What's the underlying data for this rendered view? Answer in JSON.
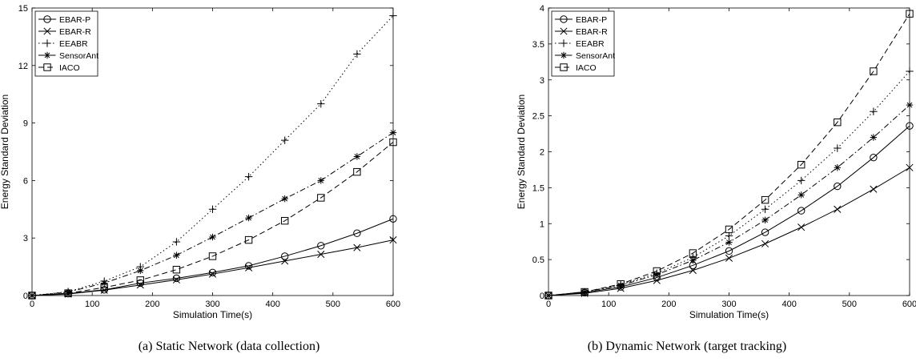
{
  "chart_data": [
    {
      "type": "line",
      "caption": "(a) Static Network (data collection)",
      "xlabel": "Simulation Time(s)",
      "ylabel": "Energy Standard Deviation",
      "xlim": [
        0,
        600
      ],
      "ylim": [
        0,
        15
      ],
      "xticks": [
        0,
        100,
        200,
        300,
        400,
        500,
        600
      ],
      "yticks": [
        0,
        3,
        6,
        9,
        12,
        15
      ],
      "grid": false,
      "legend_position": "top-left",
      "x": [
        0,
        60,
        120,
        180,
        240,
        300,
        360,
        420,
        480,
        540,
        600
      ],
      "series": [
        {
          "name": "EBAR-P",
          "marker": "circle",
          "dash": "solid",
          "values": [
            0,
            0.1,
            0.3,
            0.65,
            0.9,
            1.2,
            1.55,
            2.05,
            2.6,
            3.25,
            4.0
          ]
        },
        {
          "name": "EBAR-R",
          "marker": "x",
          "dash": "solid",
          "values": [
            0,
            0.08,
            0.28,
            0.55,
            0.82,
            1.12,
            1.45,
            1.8,
            2.15,
            2.5,
            2.9
          ]
        },
        {
          "name": "EEABR",
          "marker": "plus",
          "dash": "dotted",
          "values": [
            0,
            0.2,
            0.75,
            1.5,
            2.8,
            4.5,
            6.2,
            8.1,
            10.0,
            12.6,
            14.6
          ]
        },
        {
          "name": "SensorAnt",
          "marker": "star",
          "dash": "dashdot",
          "values": [
            0,
            0.18,
            0.65,
            1.3,
            2.1,
            3.05,
            4.05,
            5.05,
            6.0,
            7.25,
            8.5
          ]
        },
        {
          "name": "IACO",
          "marker": "square",
          "dash": "dashed",
          "values": [
            0,
            0.12,
            0.42,
            0.8,
            1.35,
            2.05,
            2.9,
            3.9,
            5.1,
            6.45,
            8.0
          ]
        }
      ]
    },
    {
      "type": "line",
      "caption": "(b) Dynamic Network (target tracking)",
      "xlabel": "Simulation Time(s)",
      "ylabel": "Energy Standard Deviation",
      "xlim": [
        0,
        600
      ],
      "ylim": [
        0,
        4
      ],
      "xticks": [
        0,
        100,
        200,
        300,
        400,
        500,
        600
      ],
      "yticks": [
        0,
        0.5,
        1,
        1.5,
        2,
        2.5,
        3,
        3.5,
        4
      ],
      "grid": false,
      "legend_position": "top-left",
      "x": [
        0,
        60,
        120,
        180,
        240,
        300,
        360,
        420,
        480,
        540,
        600
      ],
      "series": [
        {
          "name": "EBAR-P",
          "marker": "circle",
          "dash": "solid",
          "values": [
            0,
            0.04,
            0.12,
            0.25,
            0.42,
            0.62,
            0.88,
            1.18,
            1.52,
            1.92,
            2.36
          ]
        },
        {
          "name": "EBAR-R",
          "marker": "x",
          "dash": "solid",
          "values": [
            0,
            0.03,
            0.1,
            0.21,
            0.35,
            0.52,
            0.72,
            0.95,
            1.2,
            1.48,
            1.78
          ]
        },
        {
          "name": "EEABR",
          "marker": "plus",
          "dash": "dotted",
          "values": [
            0,
            0.05,
            0.15,
            0.31,
            0.53,
            0.83,
            1.2,
            1.6,
            2.05,
            2.56,
            3.12
          ]
        },
        {
          "name": "SensorAnt",
          "marker": "star",
          "dash": "dashdot",
          "values": [
            0,
            0.05,
            0.14,
            0.29,
            0.49,
            0.74,
            1.05,
            1.4,
            1.78,
            2.2,
            2.65
          ]
        },
        {
          "name": "IACO",
          "marker": "square",
          "dash": "dashed",
          "values": [
            0,
            0.05,
            0.16,
            0.34,
            0.59,
            0.92,
            1.33,
            1.82,
            2.41,
            3.12,
            3.92
          ]
        }
      ]
    }
  ]
}
